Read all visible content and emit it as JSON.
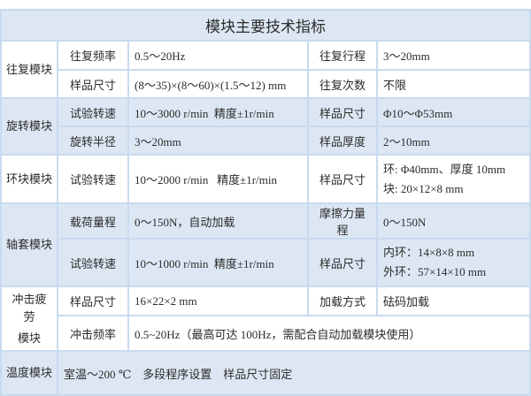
{
  "title": "模块主要技术指标",
  "reciprocating": {
    "module": "往复模块",
    "rows": [
      {
        "label1": "往复频率",
        "value1": "0.5～20Hz",
        "label2": "往复行程",
        "value2": "3～20mm"
      },
      {
        "label1": "样品尺寸",
        "value1": "(8～35)×(8～60)×(1.5～12) mm",
        "label2": "往复次数",
        "value2": "不限"
      }
    ]
  },
  "rotary": {
    "module": "旋转模块",
    "rows": [
      {
        "label1": "试验转速",
        "value1": "10～3000 r/min  精度±1r/min",
        "label2": "样品尺寸",
        "value2": "Φ10～Φ53mm"
      },
      {
        "label1": "旋转半径",
        "value1": "3～20mm",
        "label2": "样品厚度",
        "value2": "2～10mm"
      }
    ]
  },
  "ring_block": {
    "module": "环块模块",
    "label1": "试验转速",
    "value1": "10～2000 r/min   精度±1r/min",
    "label2": "样品尺寸",
    "value2_lines": [
      "环: Φ40mm、厚度 10mm",
      "块: 20×12×8 mm"
    ]
  },
  "bearing": {
    "module": "轴套模块",
    "row1": {
      "label1": "载荷量程",
      "value1": "0～150N，自动加载",
      "label2": "摩擦力量程",
      "value2": "0～150N"
    },
    "row2": {
      "label1": "试验转速",
      "value1": "10～1000 r/min  精度±1r/min",
      "label2": "样品尺寸",
      "value2_lines": [
        "内环：14×8×8 mm",
        "外环：57×14×10 mm"
      ]
    }
  },
  "impact": {
    "module_lines": [
      "冲击疲劳",
      "模块"
    ],
    "row1": {
      "label1": "样品尺寸",
      "value1": "16×22×2 mm",
      "label2": "加载方式",
      "value2": "砝码加载"
    },
    "row2": {
      "label1": "冲击频率",
      "value1": "0.5~20Hz（最高可达 100Hz，需配合自动加载模块使用）"
    }
  },
  "temperature": {
    "module": "温度模块",
    "value": "室温～200 ℃    多段程序设置    样品尺寸固定"
  }
}
